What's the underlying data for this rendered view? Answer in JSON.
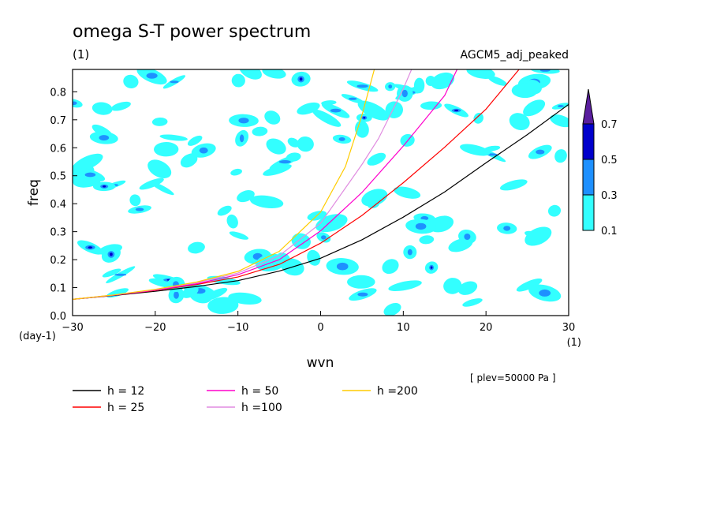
{
  "chart_data": {
    "type": "contour",
    "title": "omega S-T power spectrum",
    "title_units": "(1)",
    "model_label": "AGCM5_adj_peaked",
    "xlabel": "wvn",
    "x_units": "(1)",
    "ylabel": "freq",
    "y_units": "(day-1)",
    "level_note": "[ plev=50000 Pa ]",
    "xlim": [
      -30,
      30
    ],
    "ylim": [
      0,
      0.88
    ],
    "x_ticks": [
      -30,
      -20,
      -10,
      0,
      10,
      20,
      30
    ],
    "y_ticks": [
      0,
      0.1,
      0.2,
      0.3,
      0.4,
      0.5,
      0.6,
      0.7,
      0.8
    ],
    "colorbar": {
      "levels": [
        0.1,
        0.3,
        0.5,
        0.7
      ],
      "colors": [
        "#33ffff",
        "#1e90ff",
        "#0000cc",
        "#5a1e9e"
      ],
      "extend": "max"
    },
    "series": [
      {
        "name": "h = 12",
        "color": "#000000",
        "x": [
          -30,
          -25,
          -20,
          -15,
          -10,
          -5,
          0,
          5,
          10,
          15,
          20,
          25,
          30
        ],
        "y": [
          0.058,
          0.072,
          0.087,
          0.104,
          0.125,
          0.159,
          0.205,
          0.271,
          0.352,
          0.442,
          0.546,
          0.647,
          0.755
        ]
      },
      {
        "name": "h = 25",
        "color": "#ff0000",
        "x": [
          -30,
          -25,
          -20,
          -15,
          -10,
          -5,
          0,
          5,
          10,
          15,
          20,
          24
        ],
        "y": [
          0.058,
          0.073,
          0.09,
          0.111,
          0.138,
          0.183,
          0.259,
          0.358,
          0.475,
          0.602,
          0.738,
          0.88
        ]
      },
      {
        "name": "h = 50",
        "color": "#ff00cc",
        "x": [
          -30,
          -25,
          -20,
          -15,
          -10,
          -5,
          0,
          5,
          10,
          15,
          16.5
        ],
        "y": [
          0.058,
          0.073,
          0.091,
          0.114,
          0.146,
          0.2,
          0.303,
          0.44,
          0.606,
          0.787,
          0.88
        ]
      },
      {
        "name": "h =100",
        "color": "#e08ce0",
        "x": [
          -30,
          -25,
          -20,
          -15,
          -10,
          -5,
          0,
          5,
          7,
          10,
          11
        ],
        "y": [
          0.058,
          0.074,
          0.093,
          0.118,
          0.152,
          0.214,
          0.33,
          0.54,
          0.633,
          0.811,
          0.88
        ]
      },
      {
        "name": "h =200",
        "color": "#ffcc00",
        "x": [
          -30,
          -25,
          -20,
          -15,
          -10,
          -5,
          0,
          3,
          5,
          6.5
        ],
        "y": [
          0.058,
          0.074,
          0.094,
          0.12,
          0.158,
          0.23,
          0.37,
          0.533,
          0.716,
          0.88
        ]
      }
    ],
    "legend": [
      {
        "name": "h = 12",
        "color": "#000000"
      },
      {
        "name": "h = 50",
        "color": "#ff00cc"
      },
      {
        "name": "h =200",
        "color": "#ffcc00"
      },
      {
        "name": "h = 25",
        "color": "#ff0000"
      },
      {
        "name": "h =100",
        "color": "#e08ce0"
      }
    ],
    "legend_placement": "bottom-left",
    "grid": false
  }
}
